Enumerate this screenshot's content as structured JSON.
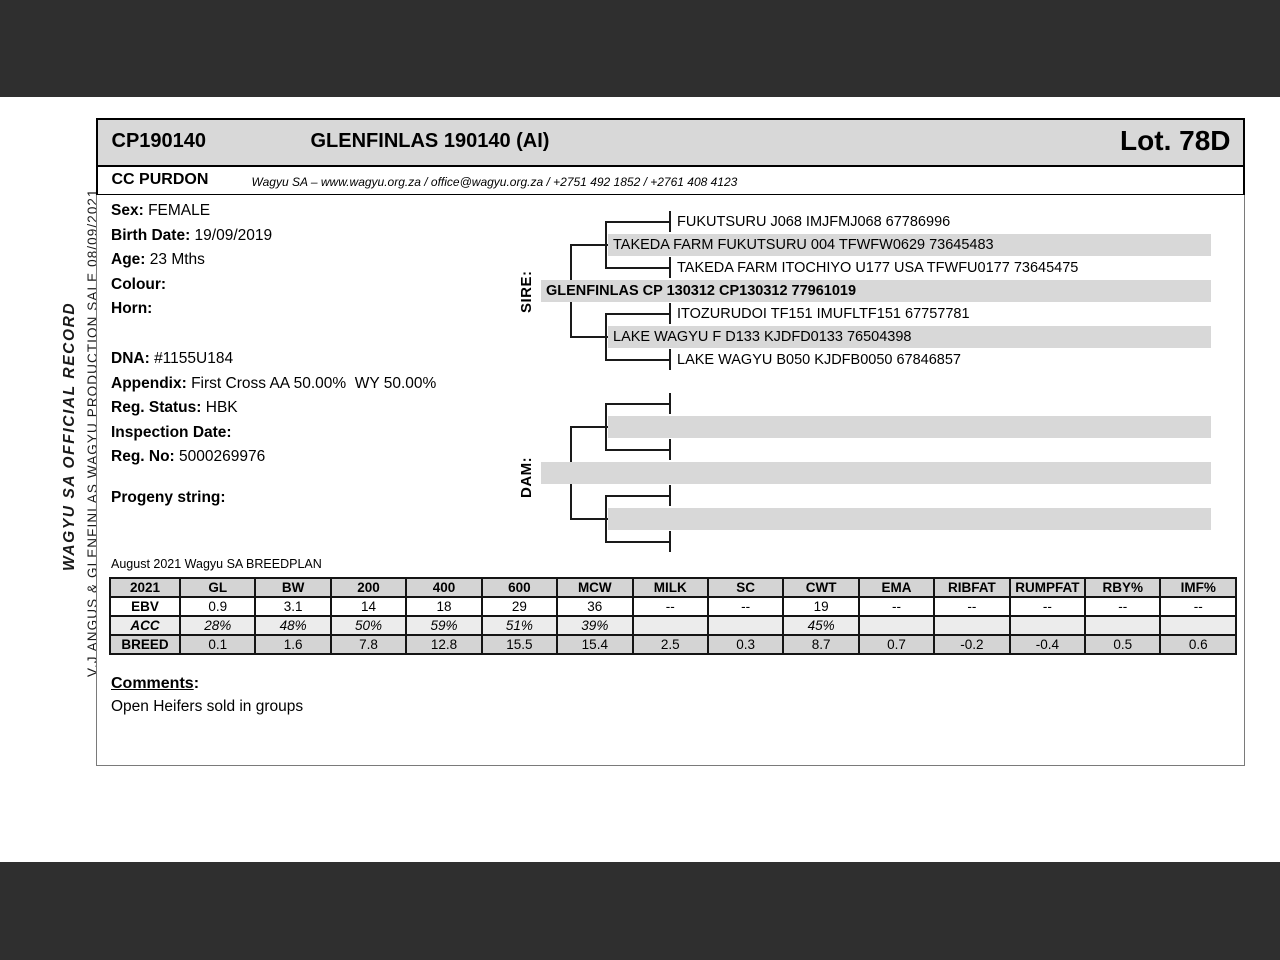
{
  "colors": {
    "frame_dark": "#2f2f2f",
    "pedigree_bar": "#d8d8d8",
    "table_gray": "#d4d4d4"
  },
  "sidebar": {
    "line1": "WAGYU SA OFFICIAL RECORD",
    "line2": "V.J ANGUS & GLENFINLAS WAGYU PRODUCTION SALE 08/09/2021"
  },
  "header": {
    "animal_id": "CP190140",
    "animal_name": "GLENFINLAS 190140 (AI)",
    "lot": "Lot. 78D",
    "breeder": "CC PURDON",
    "contact": "Wagyu SA – www.wagyu.org.za / office@wagyu.org.za / +2751 492 1852 / +2761 408 4123"
  },
  "details": {
    "rows": [
      {
        "label": "Sex:",
        "value": "FEMALE"
      },
      {
        "label": "Birth Date:",
        "value": "19/09/2019"
      },
      {
        "label": "Age:",
        "value": "23 Mths"
      },
      {
        "label": "Colour:",
        "value": ""
      },
      {
        "label": "Horn:",
        "value": ""
      },
      {
        "label": "DNA:",
        "value": "#1155U184"
      },
      {
        "label": "Appendix:",
        "value": "First Cross AA 50.00%  WY 50.00%"
      },
      {
        "label": "Reg. Status:",
        "value": "HBK"
      },
      {
        "label": "Inspection Date:",
        "value": ""
      },
      {
        "label": "Reg. No:",
        "value": "5000269976"
      },
      {
        "label": "Progeny string:",
        "value": ""
      }
    ]
  },
  "pedigree": {
    "sire_label": "SIRE:",
    "dam_label": "DAM:",
    "sire": {
      "rows": [
        "FUKUTSURU J068 IMJFMJ068 67786996",
        "TAKEDA FARM FUKUTSURU 004 TFWFW0629 73645483",
        "TAKEDA FARM ITOCHIYO U177 USA TFWFU0177 73645475",
        "GLENFINLAS CP 130312 CP130312 77961019",
        "ITOZURUDOI TF151 IMUFLTF151 67757781",
        "LAKE WAGYU F D133 KJDFD0133 76504398",
        "LAKE WAGYU B050 KJDFB0050 67846857"
      ]
    },
    "dam": {
      "rows": [
        "",
        "",
        "",
        "",
        "",
        "",
        ""
      ]
    }
  },
  "breedplan": {
    "caption": "August 2021 Wagyu SA BREEDPLAN",
    "columns": [
      "2021",
      "GL",
      "BW",
      "200",
      "400",
      "600",
      "MCW",
      "MILK",
      "SC",
      "CWT",
      "EMA",
      "RIBFAT",
      "RUMPFAT",
      "RBY%",
      "IMF%"
    ],
    "rows": [
      {
        "label": "EBV",
        "values": [
          "0.9",
          "3.1",
          "14",
          "18",
          "29",
          "36",
          "--",
          "--",
          "19",
          "--",
          "--",
          "--",
          "--",
          "--"
        ]
      },
      {
        "label": "ACC",
        "values": [
          "28%",
          "48%",
          "50%",
          "59%",
          "51%",
          "39%",
          "",
          "",
          "45%",
          "",
          "",
          "",
          "",
          ""
        ]
      },
      {
        "label": "BREED",
        "values": [
          "0.1",
          "1.6",
          "7.8",
          "12.8",
          "15.5",
          "15.4",
          "2.5",
          "0.3",
          "8.7",
          "0.7",
          "-0.2",
          "-0.4",
          "0.5",
          "0.6"
        ]
      }
    ]
  },
  "comments": {
    "label": "Comments",
    "colon": ":",
    "text": "Open Heifers sold in groups"
  }
}
